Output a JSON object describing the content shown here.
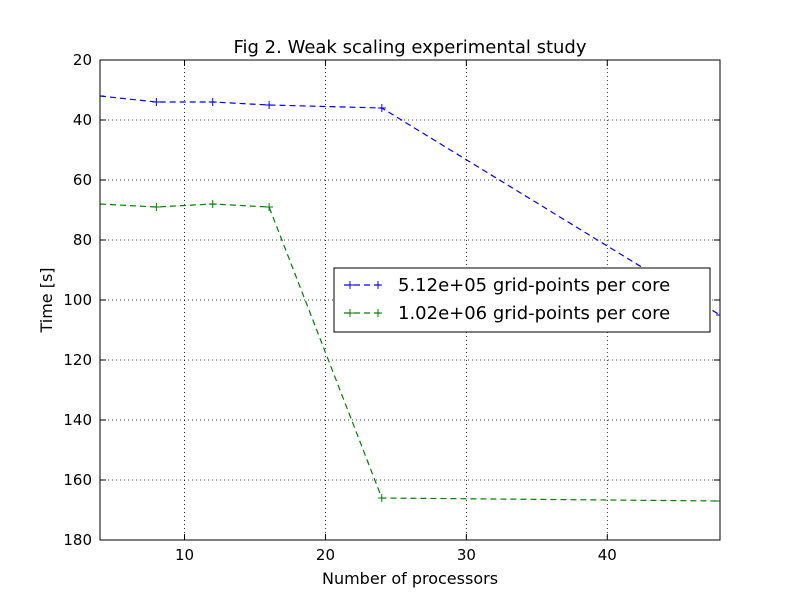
{
  "chart_data": {
    "type": "line",
    "title": "Fig 2. Weak scaling experimental study",
    "xlabel": "Number of processors",
    "ylabel": "Time [s]",
    "xlim": [
      4,
      48
    ],
    "ylim": [
      20,
      180
    ],
    "y_inverted": true,
    "xticks": [
      10,
      20,
      30,
      40
    ],
    "yticks": [
      20,
      40,
      60,
      80,
      100,
      120,
      140,
      160,
      180
    ],
    "grid": true,
    "legend_position": "center-right",
    "series": [
      {
        "name": "5.12e+05 grid-points per core",
        "color": "#0000ff",
        "line_style": "dashed",
        "marker": "+",
        "x": [
          4,
          8,
          12,
          16,
          24,
          48
        ],
        "y": [
          32,
          34,
          34,
          35,
          36,
          105
        ]
      },
      {
        "name": "1.02e+06 grid-points per core",
        "color": "#008000",
        "line_style": "dashed",
        "marker": "+",
        "x": [
          4,
          8,
          12,
          16,
          24,
          48
        ],
        "y": [
          68,
          69,
          68,
          69,
          166,
          167
        ]
      }
    ]
  }
}
